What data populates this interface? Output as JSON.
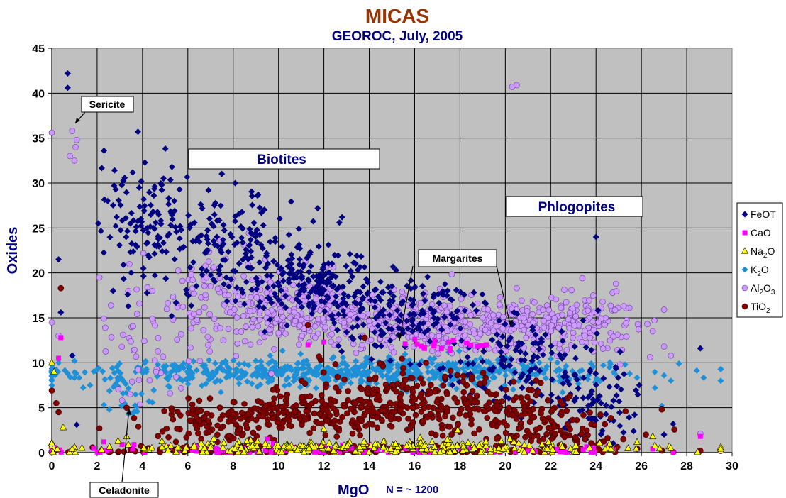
{
  "chart_data": {
    "type": "scatter",
    "title": "MICAS",
    "subtitle": "GEOROC, July, 2005",
    "xlabel": "MgO",
    "xlabel_note": "N = ~ 1200",
    "ylabel": "Oxides",
    "xlim": [
      0,
      30
    ],
    "ylim": [
      0,
      45
    ],
    "x_ticks": [
      0,
      2,
      4,
      6,
      8,
      10,
      12,
      14,
      16,
      18,
      20,
      22,
      24,
      26,
      28,
      30
    ],
    "y_ticks": [
      0,
      5,
      10,
      15,
      20,
      25,
      30,
      35,
      40,
      45
    ],
    "grid": true,
    "legend_position": "right",
    "background_color": "#c0c0c0",
    "legend": [
      {
        "key": "FeOT",
        "main": "FeOT",
        "sub": "",
        "tail": "",
        "marker": "diamond",
        "color": "#000080"
      },
      {
        "key": "CaO",
        "main": "CaO",
        "sub": "",
        "tail": "",
        "marker": "square",
        "color": "#ff00ff"
      },
      {
        "key": "Na2O",
        "main": "Na",
        "sub": "2",
        "tail": "O",
        "marker": "triangle",
        "color": "#ffff00"
      },
      {
        "key": "K2O",
        "main": "K",
        "sub": "2",
        "tail": "O",
        "marker": "diamond",
        "color": "#1e90d8"
      },
      {
        "key": "Al2O3",
        "main": "Al",
        "sub": "2",
        "tail": "O",
        "sub2": "3",
        "marker": "circle",
        "color": "#cc99ff"
      },
      {
        "key": "TiO2",
        "main": "TiO",
        "sub": "2",
        "tail": "",
        "marker": "circle",
        "color": "#800000"
      }
    ],
    "annotations": {
      "sericite": "Sericite",
      "biotites": "Biotites",
      "phlogopites": "Phlogopites",
      "margarites": "Margarites",
      "celadonite": "Celadonite"
    },
    "series": [
      {
        "name": "FeOT",
        "clusters": [
          {
            "x": 4.0,
            "y": 25,
            "sx": 1.0,
            "sy": 3.5,
            "n": 110
          },
          {
            "x": 8.0,
            "y": 23,
            "sx": 1.6,
            "sy": 3.0,
            "n": 150
          },
          {
            "x": 11.5,
            "y": 19,
            "sx": 1.6,
            "sy": 2.0,
            "n": 170
          },
          {
            "x": 15.5,
            "y": 15.5,
            "sx": 1.8,
            "sy": 2.2,
            "n": 150
          },
          {
            "x": 20.5,
            "y": 10,
            "sx": 1.8,
            "sy": 2.8,
            "n": 130
          },
          {
            "x": 23.5,
            "y": 5.5,
            "sx": 1.3,
            "sy": 2.2,
            "n": 80
          }
        ],
        "points": [
          {
            "x": 0.7,
            "y": 42.2
          },
          {
            "x": 0.7,
            "y": 40.6
          },
          {
            "x": 3.8,
            "y": 35.7
          },
          {
            "x": 2.3,
            "y": 33.6
          },
          {
            "x": 5.3,
            "y": 31.8
          },
          {
            "x": 0.3,
            "y": 21.5
          },
          {
            "x": 0.4,
            "y": 15.6
          },
          {
            "x": 12.8,
            "y": 26.2
          },
          {
            "x": 24.0,
            "y": 24.0
          },
          {
            "x": 2.7,
            "y": 18.0
          },
          {
            "x": 28.6,
            "y": 11.6
          },
          {
            "x": 0.9,
            "y": 10.8
          },
          {
            "x": 1.1,
            "y": 3.1
          },
          {
            "x": 27.0,
            "y": 2.0
          },
          {
            "x": 27.4,
            "y": 3.2
          },
          {
            "x": 25.7,
            "y": 4.2
          }
        ]
      },
      {
        "name": "CaO",
        "clusters": [
          {
            "x": 13,
            "y": 0.25,
            "sx": 6.5,
            "sy": 0.3,
            "n": 120
          },
          {
            "x": 17.5,
            "y": 11.9,
            "sx": 1.0,
            "sy": 0.4,
            "n": 18
          }
        ],
        "points": [
          {
            "x": 0.4,
            "y": 12.8
          },
          {
            "x": 0.3,
            "y": 10.5
          },
          {
            "x": 0.1,
            "y": 0.6
          },
          {
            "x": 0.35,
            "y": 0.3
          },
          {
            "x": 2.3,
            "y": 1.2
          },
          {
            "x": 3.1,
            "y": 0.9
          },
          {
            "x": 12.0,
            "y": 12.3
          },
          {
            "x": 11.3,
            "y": 12.0
          },
          {
            "x": 9.5,
            "y": 1.5
          },
          {
            "x": 19.0,
            "y": 0.5
          },
          {
            "x": 28.6,
            "y": 1.8
          },
          {
            "x": 26.5,
            "y": 0.4
          }
        ]
      },
      {
        "name": "Na2O",
        "clusters": [
          {
            "x": 13.5,
            "y": 0.55,
            "sx": 6.5,
            "sy": 0.35,
            "n": 300
          }
        ],
        "points": [
          {
            "x": 0.0,
            "y": 10.0
          },
          {
            "x": 0.1,
            "y": 9.0
          },
          {
            "x": 0.5,
            "y": 2.8
          },
          {
            "x": 3.3,
            "y": 1.8
          },
          {
            "x": 12.0,
            "y": 2.6
          },
          {
            "x": 17.9,
            "y": 2.5
          },
          {
            "x": 26.5,
            "y": 1.8
          },
          {
            "x": 27.3,
            "y": 0.5
          },
          {
            "x": 2.2,
            "y": 0.3
          },
          {
            "x": 0.9,
            "y": 0.4
          }
        ]
      },
      {
        "name": "K2O",
        "clusters": [
          {
            "x": 13.5,
            "y": 9.0,
            "sx": 6.5,
            "sy": 0.75,
            "n": 650
          },
          {
            "x": 3.5,
            "y": 6.5,
            "sx": 0.6,
            "sy": 1.5,
            "n": 25
          }
        ],
        "points": [
          {
            "x": 0.2,
            "y": 9.2
          },
          {
            "x": 0.7,
            "y": 8.8
          },
          {
            "x": 1.0,
            "y": 10.2
          },
          {
            "x": 26.6,
            "y": 7.2
          },
          {
            "x": 27.0,
            "y": 8.6
          },
          {
            "x": 27.3,
            "y": 8.0
          },
          {
            "x": 26.9,
            "y": 5.2
          },
          {
            "x": 2.3,
            "y": 5.3
          }
        ]
      },
      {
        "name": "Al2O3",
        "clusters": [
          {
            "x": 6.5,
            "y": 17.5,
            "sx": 1.4,
            "sy": 2.8,
            "n": 80
          },
          {
            "x": 10.5,
            "y": 15.5,
            "sx": 1.7,
            "sy": 2.0,
            "n": 220
          },
          {
            "x": 15.5,
            "y": 14.5,
            "sx": 2.0,
            "sy": 1.6,
            "n": 220
          },
          {
            "x": 20.8,
            "y": 14.2,
            "sx": 2.0,
            "sy": 1.6,
            "n": 250
          },
          {
            "x": 24.3,
            "y": 14.5,
            "sx": 1.0,
            "sy": 2.0,
            "n": 60
          },
          {
            "x": 4.2,
            "y": 12.0,
            "sx": 1.2,
            "sy": 3.5,
            "n": 40
          }
        ],
        "points": [
          {
            "x": 0.0,
            "y": 35.6
          },
          {
            "x": 0.9,
            "y": 35.8
          },
          {
            "x": 1.1,
            "y": 34.8
          },
          {
            "x": 1.05,
            "y": 34.0
          },
          {
            "x": 0.8,
            "y": 33.0
          },
          {
            "x": 1.0,
            "y": 32.5
          },
          {
            "x": 20.3,
            "y": 40.7
          },
          {
            "x": 20.5,
            "y": 40.9
          },
          {
            "x": 2.1,
            "y": 19.5
          },
          {
            "x": 0.0,
            "y": 14.5
          },
          {
            "x": 0.3,
            "y": 13.0
          },
          {
            "x": 27.0,
            "y": 15.9
          },
          {
            "x": 27.0,
            "y": 11.8
          },
          {
            "x": 27.3,
            "y": 10.8
          },
          {
            "x": 26.5,
            "y": 13.5
          },
          {
            "x": 28.6,
            "y": 2.1
          },
          {
            "x": 3.1,
            "y": 5.8
          }
        ]
      },
      {
        "name": "TiO2",
        "clusters": [
          {
            "x": 11.0,
            "y": 4.3,
            "sx": 2.5,
            "sy": 1.0,
            "n": 200
          },
          {
            "x": 15.0,
            "y": 6.0,
            "sx": 2.2,
            "sy": 1.8,
            "n": 180
          },
          {
            "x": 19.5,
            "y": 4.5,
            "sx": 2.0,
            "sy": 1.8,
            "n": 140
          },
          {
            "x": 22.5,
            "y": 2.0,
            "sx": 1.5,
            "sy": 1.2,
            "n": 90
          },
          {
            "x": 7.0,
            "y": 3.0,
            "sx": 1.5,
            "sy": 1.2,
            "n": 70
          },
          {
            "x": 11.5,
            "y": 0.3,
            "sx": 7.0,
            "sy": 0.3,
            "n": 150
          }
        ],
        "points": [
          {
            "x": 0.4,
            "y": 18.3
          },
          {
            "x": 0.0,
            "y": 6.9
          },
          {
            "x": 0.3,
            "y": 4.5
          },
          {
            "x": 0.2,
            "y": 5.5
          },
          {
            "x": 13.8,
            "y": 12.8
          },
          {
            "x": 11.3,
            "y": 14.2
          },
          {
            "x": 26.9,
            "y": 4.8
          },
          {
            "x": 28.6,
            "y": 0.2
          },
          {
            "x": 3.3,
            "y": 5.0
          },
          {
            "x": 1.0,
            "y": 0.5
          },
          {
            "x": 2.1,
            "y": 2.7
          },
          {
            "x": 25.3,
            "y": 4.6
          }
        ]
      }
    ]
  }
}
